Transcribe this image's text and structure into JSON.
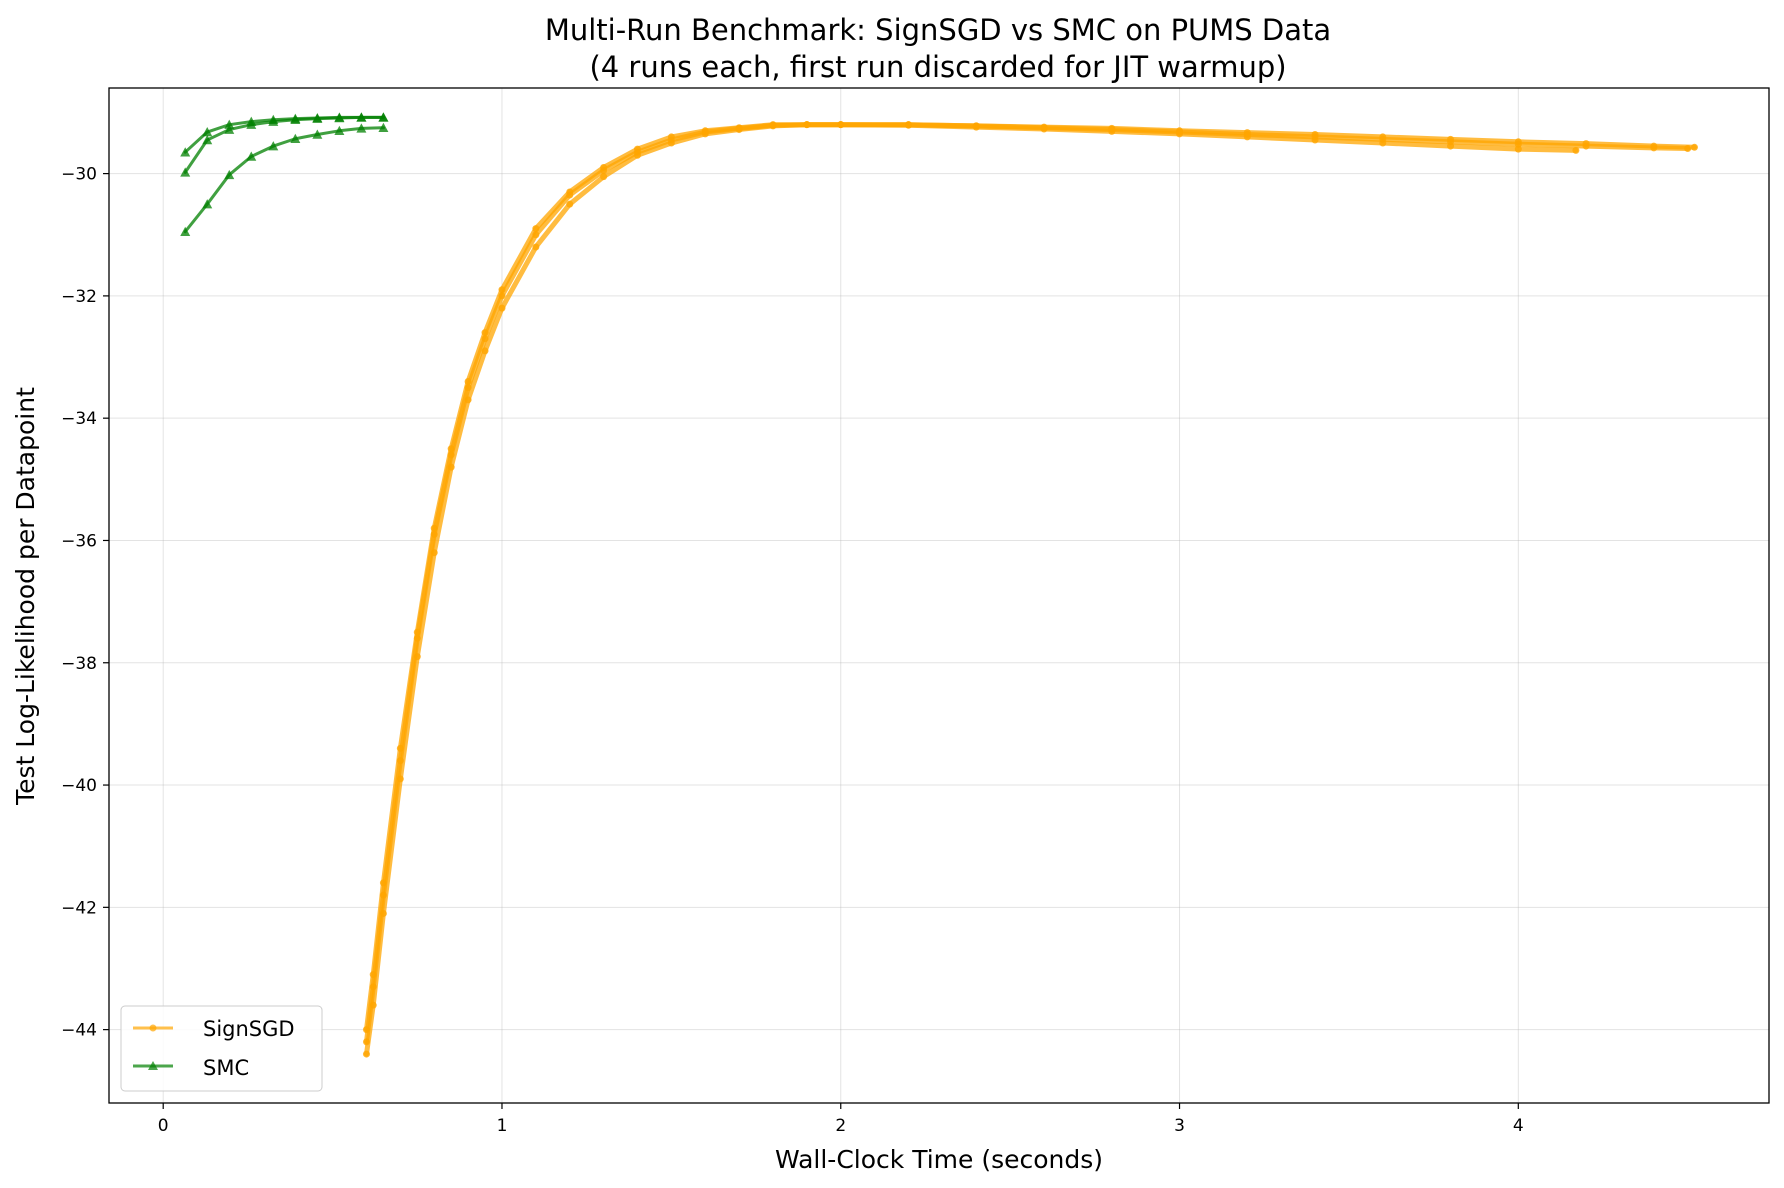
{
  "chart_data": {
    "type": "line",
    "title": "Multi-Run Benchmark: SignSGD vs SMC on PUMS Data",
    "subtitle": "(4 runs each, first run discarded for JIT warmup)",
    "xlabel": "Wall-Clock Time (seconds)",
    "ylabel": "Test Log-Likelihood per Datapoint",
    "xlim": [
      -0.16,
      4.74
    ],
    "ylim": [
      -45.2,
      -28.6
    ],
    "xticks": [
      0,
      1,
      2,
      3,
      4
    ],
    "xtick_labels": [
      "0",
      "1",
      "2",
      "3",
      "4"
    ],
    "yticks": [
      -30,
      -32,
      -34,
      -36,
      -38,
      -40,
      -42,
      -44
    ],
    "ytick_labels": [
      "−30",
      "−32",
      "−34",
      "−36",
      "−38",
      "−40",
      "−42",
      "−44"
    ],
    "grid": true,
    "legend_position": "lower-left",
    "legend": [
      {
        "label": "SignSGD",
        "color": "#FFA500",
        "marker": "circle"
      },
      {
        "label": "SMC",
        "color": "#008000",
        "marker": "triangle"
      }
    ],
    "series": [
      {
        "name": "SignSGD",
        "color": "#FFA500",
        "marker": "circle",
        "x": [
          0.6,
          0.62,
          0.65,
          0.7,
          0.75,
          0.8,
          0.85,
          0.9,
          0.95,
          1.0,
          1.1,
          1.2,
          1.3,
          1.4,
          1.5,
          1.6,
          1.7,
          1.8,
          1.9,
          2.0,
          2.2,
          2.4,
          2.6,
          2.8,
          3.0,
          3.2,
          3.4,
          3.6,
          3.8,
          4.0,
          4.2,
          4.4,
          4.52
        ],
        "y": [
          -44.0,
          -43.1,
          -41.6,
          -39.4,
          -37.5,
          -35.8,
          -34.5,
          -33.4,
          -32.6,
          -31.9,
          -30.9,
          -30.3,
          -29.9,
          -29.6,
          -29.4,
          -29.3,
          -29.25,
          -29.2,
          -29.2,
          -29.2,
          -29.2,
          -29.22,
          -29.24,
          -29.26,
          -29.3,
          -29.33,
          -29.36,
          -29.4,
          -29.44,
          -29.48,
          -29.51,
          -29.55,
          -29.57
        ]
      },
      {
        "name": "SignSGD",
        "color": "#FFA500",
        "marker": "circle",
        "x": [
          0.6,
          0.62,
          0.65,
          0.7,
          0.75,
          0.8,
          0.85,
          0.9,
          0.95,
          1.0,
          1.1,
          1.2,
          1.3,
          1.4,
          1.5,
          1.6,
          1.7,
          1.8,
          1.9,
          2.0,
          2.2,
          2.4,
          2.6,
          2.8,
          3.0,
          3.2,
          3.4,
          3.6,
          3.8,
          4.0,
          4.17
        ],
        "y": [
          -44.4,
          -43.6,
          -42.1,
          -39.9,
          -37.9,
          -36.2,
          -34.8,
          -33.7,
          -32.9,
          -32.2,
          -31.2,
          -30.5,
          -30.05,
          -29.7,
          -29.5,
          -29.35,
          -29.28,
          -29.22,
          -29.2,
          -29.2,
          -29.21,
          -29.24,
          -29.27,
          -29.31,
          -29.35,
          -29.4,
          -29.45,
          -29.5,
          -29.55,
          -29.6,
          -29.62
        ]
      },
      {
        "name": "SignSGD",
        "color": "#FFA500",
        "marker": "circle",
        "x": [
          0.6,
          0.62,
          0.65,
          0.7,
          0.75,
          0.8,
          0.85,
          0.9,
          0.95,
          1.0,
          1.1,
          1.2,
          1.3,
          1.4,
          1.5,
          1.6,
          1.7,
          1.8,
          1.9,
          2.0,
          2.2,
          2.4,
          2.6,
          2.8,
          3.0,
          3.2,
          3.4,
          3.6,
          3.8,
          4.0,
          4.2,
          4.4,
          4.5
        ],
        "y": [
          -44.2,
          -43.3,
          -41.8,
          -39.6,
          -37.6,
          -35.9,
          -34.6,
          -33.5,
          -32.7,
          -32.0,
          -31.0,
          -30.35,
          -29.95,
          -29.65,
          -29.45,
          -29.32,
          -29.26,
          -29.21,
          -29.2,
          -29.2,
          -29.2,
          -29.22,
          -29.25,
          -29.28,
          -29.32,
          -29.36,
          -29.4,
          -29.44,
          -29.48,
          -29.52,
          -29.55,
          -29.58,
          -29.59
        ]
      },
      {
        "name": "SMC",
        "color": "#008000",
        "marker": "triangle",
        "x": [
          0.065,
          0.13,
          0.195,
          0.26,
          0.325,
          0.39,
          0.455,
          0.52,
          0.585,
          0.65
        ],
        "y": [
          -29.65,
          -29.32,
          -29.2,
          -29.15,
          -29.12,
          -29.1,
          -29.09,
          -29.08,
          -29.08,
          -29.08
        ]
      },
      {
        "name": "SMC",
        "color": "#008000",
        "marker": "triangle",
        "x": [
          0.065,
          0.13,
          0.195,
          0.26,
          0.325,
          0.39,
          0.455,
          0.52,
          0.585,
          0.65
        ],
        "y": [
          -29.98,
          -29.45,
          -29.28,
          -29.2,
          -29.15,
          -29.12,
          -29.1,
          -29.09,
          -29.08,
          -29.08
        ]
      },
      {
        "name": "SMC",
        "color": "#008000",
        "marker": "triangle",
        "x": [
          0.065,
          0.13,
          0.195,
          0.26,
          0.325,
          0.39,
          0.455,
          0.52,
          0.585,
          0.65
        ],
        "y": [
          -30.95,
          -30.5,
          -30.02,
          -29.72,
          -29.55,
          -29.43,
          -29.36,
          -29.3,
          -29.26,
          -29.25
        ]
      }
    ]
  }
}
